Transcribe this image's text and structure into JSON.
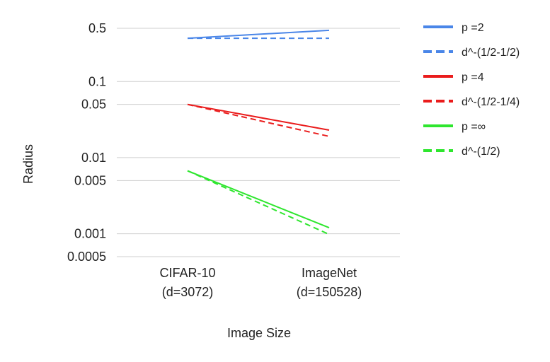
{
  "chart_data": {
    "type": "line",
    "xlabel": "Image Size",
    "ylabel": "Radius",
    "y_scale": "log",
    "ylim": [
      0.0005,
      0.5
    ],
    "grid": "horizontal",
    "legend_position": "right",
    "yticks": [
      {
        "value": 0.5,
        "label": "0.5"
      },
      {
        "value": 0.1,
        "label": "0.1"
      },
      {
        "value": 0.05,
        "label": "0.05"
      },
      {
        "value": 0.01,
        "label": "0.01"
      },
      {
        "value": 0.005,
        "label": "0.005"
      },
      {
        "value": 0.001,
        "label": "0.001"
      },
      {
        "value": 0.0005,
        "label": "0.0005"
      }
    ],
    "categories": [
      {
        "line1": "CIFAR-10",
        "line2": "(d=3072)"
      },
      {
        "line1": "ImageNet",
        "line2": "(d=150528)"
      }
    ],
    "series": [
      {
        "name": "p =2",
        "color": "#4a86e8",
        "dash": "solid",
        "values": [
          0.37,
          0.47
        ]
      },
      {
        "name": "d^-(1/2-1/2)",
        "color": "#4a86e8",
        "dash": "dashed",
        "values": [
          0.37,
          0.37
        ]
      },
      {
        "name": "p =4",
        "color": "#ea1c1c",
        "dash": "solid",
        "values": [
          0.05,
          0.023
        ]
      },
      {
        "name": "d^-(1/2-1/4)",
        "color": "#ea1c1c",
        "dash": "dashed",
        "values": [
          0.05,
          0.019
        ]
      },
      {
        "name": "p =∞",
        "color": "#2ee62e",
        "dash": "solid",
        "values": [
          0.0067,
          0.0012
        ]
      },
      {
        "name": "d^-(1/2)",
        "color": "#2ee62e",
        "dash": "dashed",
        "values": [
          0.0067,
          0.00098
        ]
      }
    ]
  }
}
